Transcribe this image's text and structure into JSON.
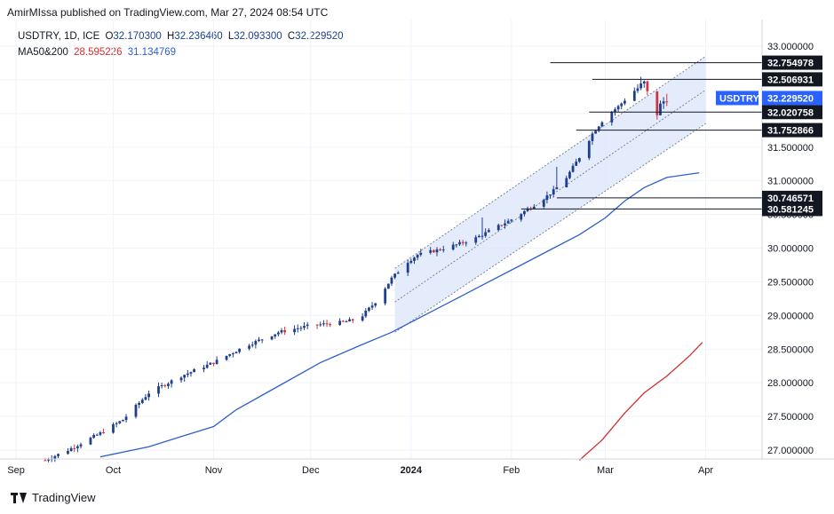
{
  "header": {
    "text": "AmirMIssa published on TradingView.com, Mar 27, 2024 08:54 UTC"
  },
  "legend": {
    "symbol": "USDTRY, 1D, ICE",
    "o_label": "O",
    "o_value": "32.170300",
    "h_label": "H",
    "h_value": "32.236460",
    "l_label": "L",
    "l_value": "32.093300",
    "c_label": "C",
    "c_value": "32.229520",
    "ma_label": "MA50&200",
    "ma50_value": "28.595226",
    "ma200_value": "31.134769"
  },
  "footer": {
    "brand": "TradingView"
  },
  "colors": {
    "up": "#1e3f8f",
    "down": "#d0353b",
    "ma_fast": "#2e5fc8",
    "ma_slow": "#d32f2f",
    "channel": "#dbe6fb",
    "price_tag": "#2962ff"
  },
  "chart_data": {
    "type": "candlestick",
    "symbol": "USDTRY",
    "timeframe": "1D",
    "ylim": [
      26.9,
      33.2
    ],
    "y_ticks": [
      27.0,
      27.5,
      28.0,
      28.5,
      29.0,
      29.5,
      30.0,
      30.5,
      31.0,
      31.5,
      32.0,
      32.5,
      33.0
    ],
    "y_tick_labels": [
      "27.000000",
      "27.500000",
      "28.000000",
      "28.500000",
      "29.000000",
      "29.500000",
      "30.000000",
      "30.500000",
      "31.000000",
      "31.500000",
      "32.000000",
      "32.500000",
      "33.000000"
    ],
    "x_ticks": [
      {
        "label": "Sep",
        "day": -6
      },
      {
        "label": "Oct",
        "day": 24
      },
      {
        "label": "Nov",
        "day": 55
      },
      {
        "label": "Dec",
        "day": 85
      },
      {
        "label": "2024",
        "day": 116
      },
      {
        "label": "Feb",
        "day": 147
      },
      {
        "label": "Mar",
        "day": 176
      },
      {
        "label": "Apr",
        "day": 207
      }
    ],
    "price_series": {
      "description": "daily close path (day index, price) from Sep 2023 to Mar 27 2024",
      "path": [
        [
          3,
          26.85
        ],
        [
          10,
          27.0
        ],
        [
          20,
          27.25
        ],
        [
          27,
          27.45
        ],
        [
          35,
          27.85
        ],
        [
          45,
          28.1
        ],
        [
          55,
          28.3
        ],
        [
          65,
          28.55
        ],
        [
          75,
          28.75
        ],
        [
          85,
          28.85
        ],
        [
          95,
          28.9
        ],
        [
          100,
          28.95
        ],
        [
          105,
          29.2
        ],
        [
          110,
          29.55
        ],
        [
          115,
          29.8
        ],
        [
          118,
          29.9
        ],
        [
          124,
          29.97
        ],
        [
          130,
          30.05
        ],
        [
          136,
          30.15
        ],
        [
          142,
          30.3
        ],
        [
          148,
          30.45
        ],
        [
          152,
          30.58
        ],
        [
          156,
          30.7
        ],
        [
          160,
          30.85
        ],
        [
          164,
          31.05
        ],
        [
          168,
          31.35
        ],
        [
          172,
          31.7
        ],
        [
          176,
          31.95
        ],
        [
          180,
          32.1
        ],
        [
          184,
          32.3
        ],
        [
          188,
          32.45
        ],
        [
          189,
          32.3
        ],
        [
          190,
          32.0
        ],
        [
          191,
          31.85
        ],
        [
          192,
          32.0
        ],
        [
          193,
          32.12
        ],
        [
          194,
          32.18
        ],
        [
          195,
          32.23
        ]
      ]
    },
    "ma_series": [
      {
        "name": "MA50",
        "value": "28.595226",
        "points": [
          [
            168,
            26.85
          ],
          [
            175,
            27.15
          ],
          [
            182,
            27.55
          ],
          [
            188,
            27.85
          ],
          [
            195,
            28.1
          ],
          [
            202,
            28.4
          ],
          [
            206,
            28.6
          ]
        ]
      },
      {
        "name": "MA200",
        "value": "31.134769",
        "points": [
          [
            20,
            26.9
          ],
          [
            35,
            27.05
          ],
          [
            45,
            27.2
          ],
          [
            55,
            27.35
          ],
          [
            62,
            27.6
          ],
          [
            75,
            27.95
          ],
          [
            88,
            28.3
          ],
          [
            100,
            28.55
          ],
          [
            110,
            28.75
          ],
          [
            120,
            29.0
          ],
          [
            130,
            29.25
          ],
          [
            140,
            29.5
          ],
          [
            150,
            29.75
          ],
          [
            160,
            30.0
          ],
          [
            168,
            30.2
          ],
          [
            176,
            30.45
          ],
          [
            182,
            30.7
          ],
          [
            188,
            30.9
          ],
          [
            195,
            31.05
          ],
          [
            205,
            31.12
          ]
        ]
      }
    ],
    "channel": {
      "start_day": 111,
      "end_day": 207,
      "lower_start": 28.75,
      "lower_end": 31.85,
      "upper_start": 29.7,
      "upper_end": 32.85,
      "mid_start": 29.2,
      "mid_end": 32.35
    },
    "levels": [
      {
        "label": "32.754978",
        "value": 32.754978,
        "from_day": 159,
        "dark": true
      },
      {
        "label": "32.506931",
        "value": 32.506931,
        "from_day": 172,
        "dark": true
      },
      {
        "label": "32.020758",
        "value": 32.020758,
        "from_day": 171,
        "dark": true
      },
      {
        "label": "31.752866",
        "value": 31.752866,
        "from_day": 167,
        "dark": true
      },
      {
        "label": "30.746571",
        "value": 30.746571,
        "from_day": 161,
        "dark": true
      },
      {
        "label": "30.581245",
        "value": 30.581245,
        "from_day": 150,
        "dark": true
      },
      {
        "label": "32.229520",
        "value": 32.22952,
        "from_day": null,
        "dark": false
      }
    ],
    "current_price_tag": {
      "symbol": "USDTRY",
      "value": "32.229520"
    }
  }
}
